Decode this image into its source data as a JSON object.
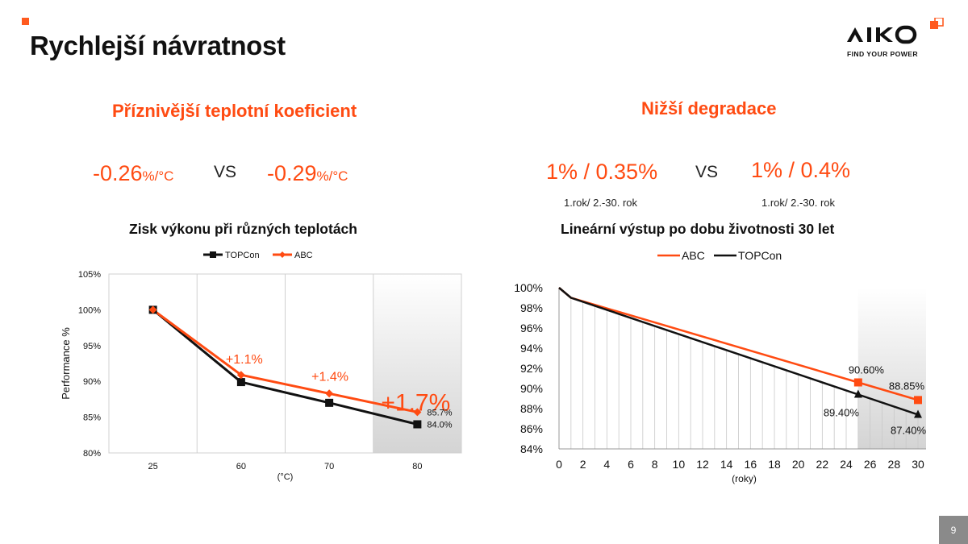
{
  "slide": {
    "title": "Rychlejší návratnost",
    "page_number": "9"
  },
  "logo": {
    "name": "AIKO",
    "tagline": "FIND YOUR POWER"
  },
  "left": {
    "heading": "Příznivější teplotní koeficient",
    "value_a": "-0.26",
    "unit_a": "%/°C",
    "vs": "VS",
    "value_b": "-0.29",
    "unit_b": "%/°C",
    "chart_title": "Zisk výkonu při různých teplotách"
  },
  "right": {
    "heading": "Nižší degradace",
    "value_a": "1% / 0.35%",
    "note_a": "1.rok/ 2.-30. rok",
    "vs": "VS",
    "value_b": "1% / 0.4%",
    "note_b": "1.rok/ 2.-30. rok",
    "chart_title": "Lineární výstup po dobu životnosti 30 let"
  },
  "colors": {
    "accent": "#ff4b12",
    "abc": "#ff4b12",
    "topcon": "#111111"
  },
  "chart_data": [
    {
      "type": "line",
      "title": "Zisk výkonu při různých teplotách",
      "xlabel": "(°C)",
      "ylabel": "Performance %",
      "categories": [
        "25",
        "60",
        "70",
        "80"
      ],
      "ylim": [
        80,
        105
      ],
      "yticks": [
        "80%",
        "85%",
        "90%",
        "95%",
        "100%",
        "105%"
      ],
      "legend_position": "top",
      "series": [
        {
          "name": "TOPCon",
          "values": [
            100,
            89.9,
            87,
            84
          ],
          "marker": "square",
          "color": "#111111"
        },
        {
          "name": "ABC",
          "values": [
            100,
            90.9,
            88.3,
            85.7
          ],
          "marker": "diamond",
          "color": "#ff4b12"
        }
      ],
      "annotations": [
        {
          "text": "+1.1%",
          "category": "60"
        },
        {
          "text": "+1.4%",
          "category": "70"
        },
        {
          "text": "+1.7%",
          "category": "80"
        }
      ],
      "data_labels": [
        {
          "series": "ABC",
          "category": "80",
          "text": "85.7%"
        },
        {
          "series": "TOPCon",
          "category": "80",
          "text": "84.0%"
        }
      ],
      "highlight_category": "80"
    },
    {
      "type": "line",
      "title": "Lineární výstup po dobu životnosti 30 let",
      "xlabel": "(roky)",
      "ylabel": "",
      "x_ticks": [
        0,
        2,
        4,
        6,
        8,
        10,
        12,
        14,
        16,
        18,
        20,
        22,
        24,
        26,
        28,
        30
      ],
      "xlim": [
        0,
        30
      ],
      "ylim": [
        84,
        100
      ],
      "yticks": [
        "84%",
        "86%",
        "88%",
        "90%",
        "92%",
        "94%",
        "96%",
        "98%",
        "100%"
      ],
      "legend_position": "top",
      "series": [
        {
          "name": "ABC",
          "x": [
            0,
            1,
            25,
            30
          ],
          "y": [
            100,
            99,
            90.6,
            88.85
          ],
          "color": "#ff4b12"
        },
        {
          "name": "TOPCon",
          "x": [
            0,
            1,
            25,
            30
          ],
          "y": [
            100,
            99,
            89.4,
            87.4
          ],
          "color": "#111111"
        }
      ],
      "data_labels": [
        {
          "series": "ABC",
          "x": 25,
          "text": "90.60%"
        },
        {
          "series": "ABC",
          "x": 30,
          "text": "88.85%"
        },
        {
          "series": "TOPCon",
          "x": 25,
          "text": "89.40%"
        },
        {
          "series": "TOPCon",
          "x": 30,
          "text": "87.40%"
        }
      ],
      "highlight_x_range": [
        25,
        30
      ]
    }
  ]
}
